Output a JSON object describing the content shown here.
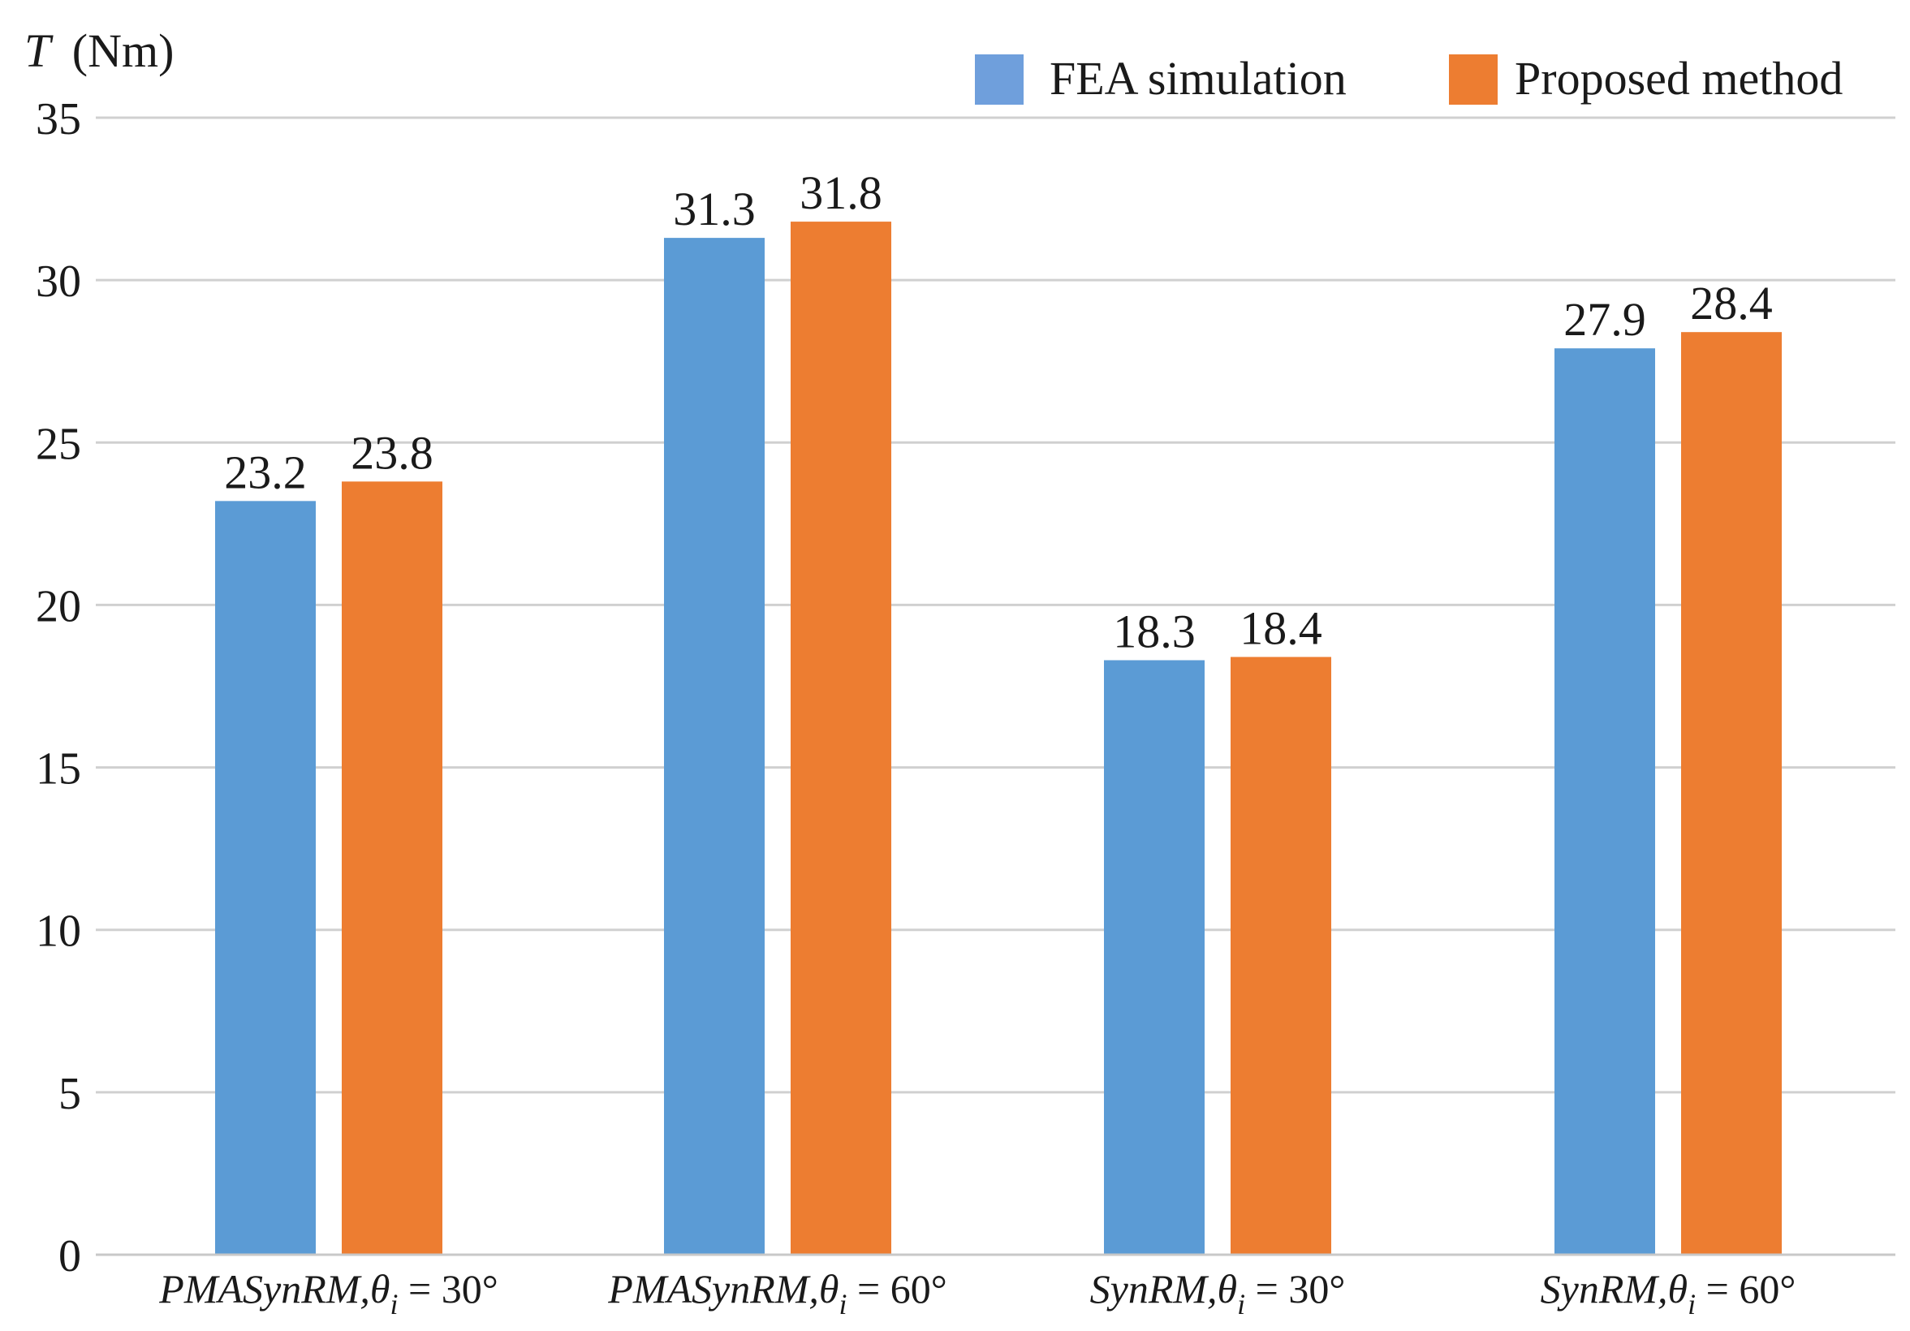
{
  "chart_data": {
    "type": "bar",
    "title": "",
    "xlabel": "",
    "ylabel": "(Nm)",
    "ylabel_symbol": "T",
    "ylim": [
      0,
      35
    ],
    "yticks": [
      0,
      5,
      10,
      15,
      20,
      25,
      30,
      35
    ],
    "grid": true,
    "legend_position": "top-right",
    "categories": [
      {
        "motor": "PMASynRM",
        "label": "PMASynRM,θi = 30°",
        "angle_text": " = 30°"
      },
      {
        "motor": "PMASynRM",
        "label": "PMASynRM,θi = 60°",
        "angle_text": " = 60°"
      },
      {
        "motor": "SynRM",
        "label": "SynRM,θi = 30°",
        "angle_text": " = 30°"
      },
      {
        "motor": "SynRM",
        "label": "SynRM,θi = 60°",
        "angle_text": " = 60°"
      }
    ],
    "series": [
      {
        "name": "FEA simulation",
        "color": "#5b9bd5",
        "legend_color": "#6f9fdc",
        "values": [
          23.2,
          31.3,
          18.3,
          27.9
        ]
      },
      {
        "name": "Proposed method",
        "color": "#ed7d31",
        "legend_color": "#ed7d31",
        "values": [
          23.8,
          31.8,
          18.4,
          28.4
        ]
      }
    ]
  }
}
